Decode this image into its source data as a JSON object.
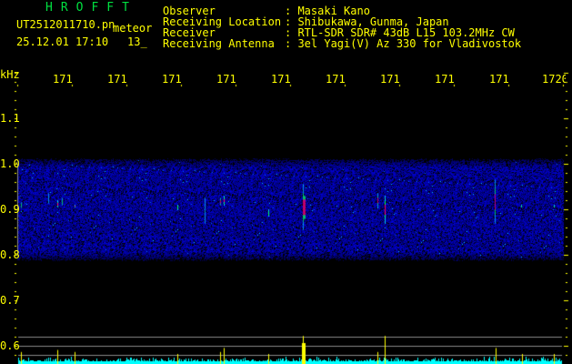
{
  "header": {
    "app_title": "HROFFT",
    "file_name": "UT2512011710.pn",
    "mode": "meteor",
    "datetime": "25.12.01 17:10",
    "count": "13_"
  },
  "info": [
    {
      "label": "Observer",
      "value": ": Masaki Kano"
    },
    {
      "label": "Receiving Location",
      "value": ": Shibukawa, Gunma, Japan"
    },
    {
      "label": "Receiver",
      "value": ": RTL-SDR SDR# 43dB L15 103.2MHz CW"
    },
    {
      "label": "Receiving Antenna",
      "value": ": 3el Yagi(V) Az 330 for Vladivostok"
    }
  ],
  "chart_data": {
    "type": "heatmap",
    "ylabel": "kHz",
    "x_tick_labels": [
      "1711",
      "1712",
      "1713",
      "1714",
      "1715",
      "1716",
      "1717",
      "1718",
      "1719",
      "1720"
    ],
    "x_range_minutes": [
      "17:10",
      "17:20"
    ],
    "y_tick_labels": [
      "1.1",
      "1.0",
      "0.9",
      "0.8",
      "0.7",
      "0.6"
    ],
    "y_range_khz": [
      0.57,
      1.2
    ],
    "noise_band_khz": [
      0.8,
      1.0
    ],
    "colors": {
      "noise": "#0000c0",
      "weak": "#00c0ff",
      "medium": "#00ff60",
      "strong": "#ff0060",
      "axis": "#ffff00",
      "histogram": "#00ffff",
      "spike": "#ffff00",
      "title": "#00e040"
    },
    "echoes": [
      {
        "time_s": 4,
        "f_lo": 0.905,
        "f_hi": 0.915,
        "strength": 2
      },
      {
        "time_s": 34,
        "f_lo": 0.915,
        "f_hi": 0.935,
        "strength": 1
      },
      {
        "time_s": 44,
        "f_lo": 0.905,
        "f_hi": 0.92,
        "strength": 3
      },
      {
        "time_s": 49,
        "f_lo": 0.91,
        "f_hi": 0.925,
        "strength": 2
      },
      {
        "time_s": 63,
        "f_lo": 0.905,
        "f_hi": 0.91,
        "strength": 3
      },
      {
        "time_s": 176,
        "f_lo": 0.9,
        "f_hi": 0.91,
        "strength": 2
      },
      {
        "time_s": 206,
        "f_lo": 0.87,
        "f_hi": 0.925,
        "strength": 1
      },
      {
        "time_s": 223,
        "f_lo": 0.91,
        "f_hi": 0.925,
        "strength": 3
      },
      {
        "time_s": 227,
        "f_lo": 0.91,
        "f_hi": 0.93,
        "strength": 3
      },
      {
        "time_s": 276,
        "f_lo": 0.885,
        "f_hi": 0.9,
        "strength": 2
      },
      {
        "time_s": 314,
        "f_lo": 0.855,
        "f_hi": 0.955,
        "strength": 3
      },
      {
        "time_s": 396,
        "f_lo": 0.905,
        "f_hi": 0.935,
        "strength": 3
      },
      {
        "time_s": 404,
        "f_lo": 0.87,
        "f_hi": 0.93,
        "strength": 3
      },
      {
        "time_s": 525,
        "f_lo": 0.87,
        "f_hi": 0.965,
        "strength": 3
      },
      {
        "time_s": 554,
        "f_lo": 0.905,
        "f_hi": 0.91,
        "strength": 2
      },
      {
        "time_s": 590,
        "f_lo": 0.905,
        "f_hi": 0.91,
        "strength": 2
      }
    ],
    "spikes": [
      {
        "time_s": 4,
        "height": 0.6
      },
      {
        "time_s": 44,
        "height": 0.7
      },
      {
        "time_s": 63,
        "height": 0.6
      },
      {
        "time_s": 176,
        "height": 0.5
      },
      {
        "time_s": 223,
        "height": 0.6
      },
      {
        "time_s": 227,
        "height": 0.8
      },
      {
        "time_s": 276,
        "height": 0.5
      },
      {
        "time_s": 314,
        "height": 1.4
      },
      {
        "time_s": 396,
        "height": 0.6
      },
      {
        "time_s": 404,
        "height": 1.4
      },
      {
        "time_s": 526,
        "height": 0.8
      },
      {
        "time_s": 555,
        "height": 0.5
      },
      {
        "time_s": 590,
        "height": 0.5
      }
    ]
  }
}
